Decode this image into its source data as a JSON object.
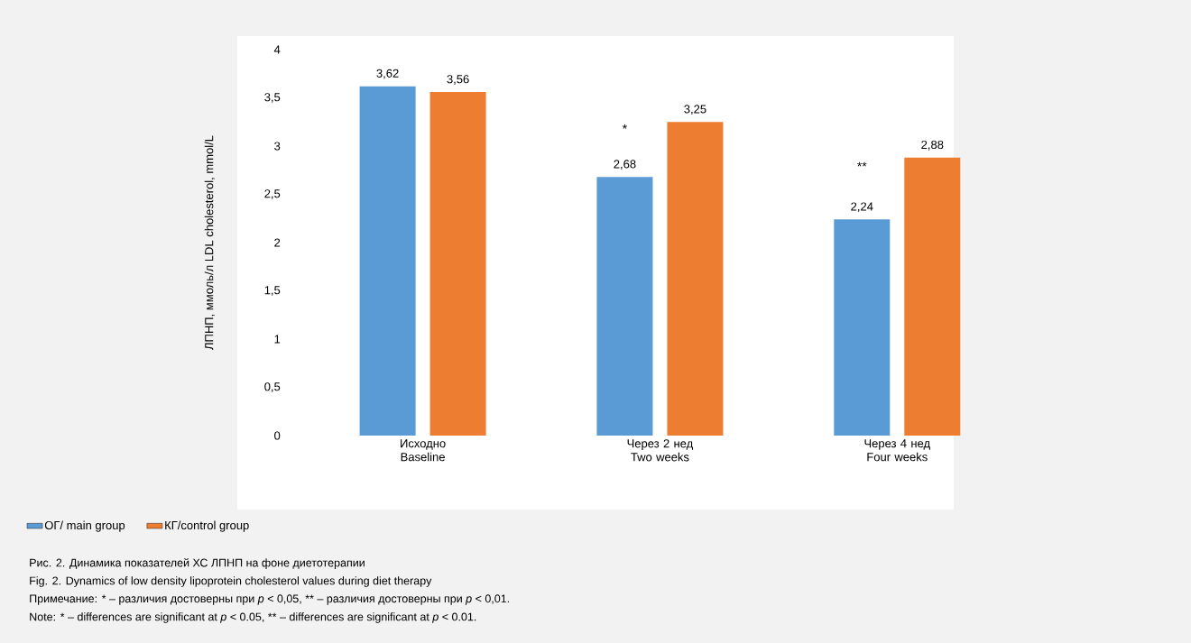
{
  "chart_data": {
    "type": "bar",
    "ylabel": "ЛПНП, ммоль/л LDL cholesterol, mmol/L",
    "categories": [
      "Исходно Baseline",
      "Через 2 нед Two weeks",
      "Через 4 нед Four weeks"
    ],
    "series": [
      {
        "name": "ОГ/ main group",
        "color": "#5b9bd5",
        "values": [
          3.62,
          2.68,
          2.24
        ],
        "value_labels": [
          "3,62",
          "2,68",
          "2,24"
        ]
      },
      {
        "name": "КГ/control group",
        "color": "#ed7d31",
        "values": [
          3.56,
          3.25,
          2.88
        ],
        "value_labels": [
          "3,56",
          "3,25",
          "2,88"
        ]
      }
    ],
    "ylim": [
      0,
      4
    ],
    "yticks": [
      0,
      {
        "value": 0.5,
        "label": "0,5"
      },
      1,
      {
        "value": 1.5,
        "label": "1,5"
      },
      2,
      {
        "value": 2.5,
        "label": "2,5"
      },
      3,
      {
        "value": 3.5,
        "label": "3,5"
      },
      4
    ],
    "legend": "bottom",
    "annotations": [
      "*",
      "**",
      "Рис. 2. Динамика показателей ХС ЛПНП на фоне диетотерапии",
      "Fig. 2. Dynamics of low density lipoprotein cholesterol values during diet therapy",
      "Примечание: * – различия достоверны при *p* < 0,05, ** – различия достоверны при *p* < 0,01.",
      "Note: * – differences are significant at *p* < 0.05, ** – differences are significant at *p* < 0.01."
    ]
  }
}
